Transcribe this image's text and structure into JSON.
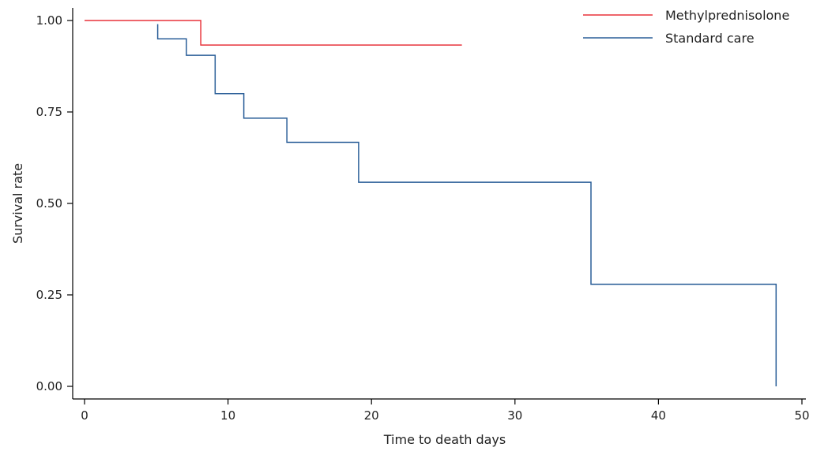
{
  "chart_data": {
    "type": "line",
    "step": true,
    "title": "",
    "xlabel": "Time to death days",
    "ylabel": "Survival rate",
    "xlim": [
      0,
      50
    ],
    "ylim": [
      0,
      1
    ],
    "xticks": [
      0,
      10,
      20,
      30,
      40,
      50
    ],
    "yticks": [
      0.0,
      0.25,
      0.5,
      0.75,
      1.0
    ],
    "xtick_labels": [
      "0",
      "10",
      "20",
      "30",
      "40",
      "50"
    ],
    "ytick_labels": [
      "0.00",
      "0.25",
      "0.50",
      "0.75",
      "1.00"
    ],
    "grid": false,
    "legend_position": "top-right",
    "series": [
      {
        "name": "Methylprednisolone",
        "color": "#e8323a",
        "x": [
          0,
          8.1,
          8.1,
          26.3
        ],
        "y": [
          1.0,
          1.0,
          0.933,
          0.933
        ]
      },
      {
        "name": "Standard care",
        "color": "#2a5e98",
        "x": [
          5.1,
          5.1,
          7.1,
          7.1,
          9.1,
          9.1,
          11.1,
          11.1,
          14.1,
          14.1,
          19.1,
          19.1,
          35.3,
          35.3,
          48.2,
          48.2
        ],
        "y": [
          0.99,
          0.95,
          0.95,
          0.905,
          0.905,
          0.8,
          0.8,
          0.733,
          0.733,
          0.667,
          0.667,
          0.558,
          0.558,
          0.279,
          0.279,
          0.0
        ]
      }
    ]
  }
}
